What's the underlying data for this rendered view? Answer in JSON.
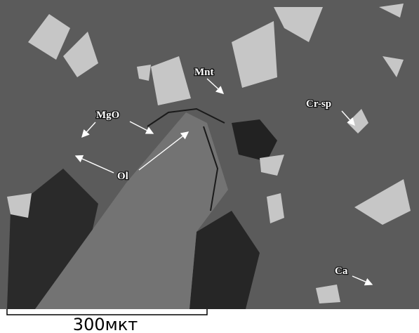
{
  "labels": [
    {
      "text": "Mnt"
    },
    {
      "text": "MgO"
    },
    {
      "text": "Cr-sp"
    },
    {
      "text": "Ol"
    },
    {
      "text": "Ca"
    }
  ],
  "scale_bar": {
    "label": "300мкт"
  }
}
